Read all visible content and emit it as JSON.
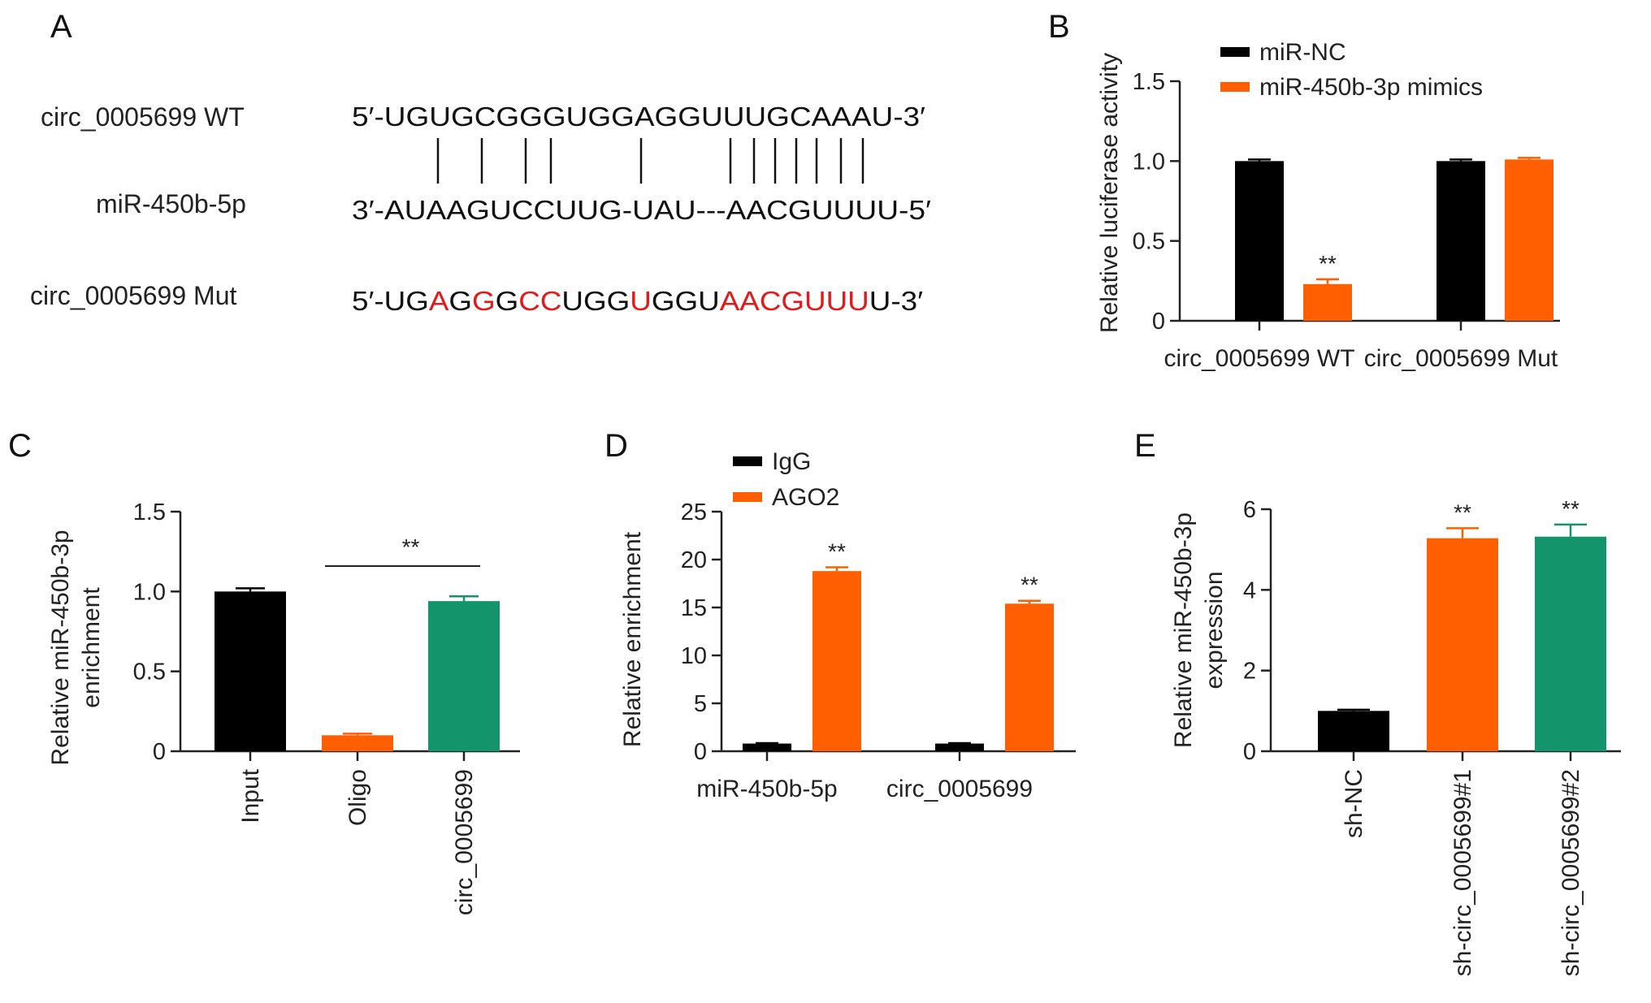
{
  "panel_a": {
    "panel_label": "A",
    "wt_label": "circ_0005699 WT",
    "mir_label": "miR-450b-5p",
    "mut_label": "circ_0005699 Mut",
    "wt_seq": "5′-UGUGCGGGUGGAGGUUUGCAAAU-3′",
    "mir_seq": "3′-AUAAGUCCUUG-UAU---AACGUUUU-5′",
    "mut_seq_segments": [
      {
        "text": "5′-UG",
        "color": "#111111"
      },
      {
        "text": "A",
        "color": "#e31a1c"
      },
      {
        "text": "G",
        "color": "#111111"
      },
      {
        "text": "G",
        "color": "#e31a1c"
      },
      {
        "text": "G",
        "color": "#111111"
      },
      {
        "text": "CC",
        "color": "#e31a1c"
      },
      {
        "text": "UGG",
        "color": "#111111"
      },
      {
        "text": "U",
        "color": "#e31a1c"
      },
      {
        "text": "GGU",
        "color": "#111111"
      },
      {
        "text": "AACGUUU",
        "color": "#e31a1c"
      },
      {
        "text": "U-3′",
        "color": "#111111"
      }
    ]
  },
  "colors": {
    "black": "#000000",
    "orange": "#ff5f00",
    "green": "#13946a",
    "mutation_red": "#e31a1c"
  },
  "chart_data": [
    {
      "panel": "B",
      "type": "bar",
      "title": "",
      "xlabel": "",
      "ylabel": "Relative luciferase activity",
      "ylim": [
        0,
        1.5
      ],
      "yticks": [
        "0",
        "0.5",
        "1.0",
        "1.5"
      ],
      "categories": [
        "circ_0005699 WT",
        "circ_0005699 Mut"
      ],
      "series": [
        {
          "name": "miR-NC",
          "color": "#000000",
          "values": [
            1.0,
            1.0
          ],
          "errors": [
            0.01,
            0.01
          ]
        },
        {
          "name": "miR-450b-3p mimics",
          "color": "#ff5f00",
          "values": [
            0.23,
            1.01
          ],
          "errors": [
            0.03,
            0.01
          ]
        }
      ],
      "significance": [
        "**",
        ""
      ],
      "legend": "top"
    },
    {
      "panel": "C",
      "type": "bar",
      "title": "",
      "xlabel": "",
      "ylabel": [
        "Relative miR-450b-3p",
        "enrichment"
      ],
      "ylim": [
        0,
        1.5
      ],
      "yticks": [
        "0",
        "0.5",
        "1.0",
        "1.5"
      ],
      "categories": [
        "Input",
        "Oligo",
        "circ_0005699"
      ],
      "values": [
        1.0,
        0.1,
        0.94
      ],
      "errors": [
        0.02,
        0.01,
        0.03
      ],
      "colors": [
        "#000000",
        "#ff5f00",
        "#13946a"
      ],
      "comparison": {
        "from": 1,
        "to": 2,
        "label": "**"
      }
    },
    {
      "panel": "D",
      "type": "bar",
      "title": "",
      "xlabel": "",
      "ylabel": "Relative enrichment",
      "ylim": [
        0,
        25
      ],
      "yticks": [
        "0",
        "5",
        "10",
        "15",
        "20",
        "25"
      ],
      "categories": [
        "miR-450b-5p",
        "circ_0005699"
      ],
      "series": [
        {
          "name": "IgG",
          "color": "#000000",
          "values": [
            0.8,
            0.8
          ],
          "errors": [
            0.05,
            0.05
          ]
        },
        {
          "name": "AGO2",
          "color": "#ff5f00",
          "values": [
            18.8,
            15.4
          ],
          "errors": [
            0.4,
            0.3
          ]
        }
      ],
      "significance": [
        "**",
        "**"
      ],
      "legend": "top-left"
    },
    {
      "panel": "E",
      "type": "bar",
      "title": "",
      "xlabel": "",
      "ylabel": [
        "Relative miR-450b-3p",
        "expression"
      ],
      "ylim": [
        0,
        6
      ],
      "yticks": [
        "0",
        "2",
        "4",
        "6"
      ],
      "categories": [
        "sh-NC",
        "sh-circ_0005699#1",
        "sh-circ_0005699#2"
      ],
      "values": [
        1.0,
        5.28,
        5.32
      ],
      "errors": [
        0.03,
        0.25,
        0.3
      ],
      "colors": [
        "#000000",
        "#ff5f00",
        "#13946a"
      ],
      "significance": [
        "",
        "**",
        "**"
      ]
    }
  ]
}
